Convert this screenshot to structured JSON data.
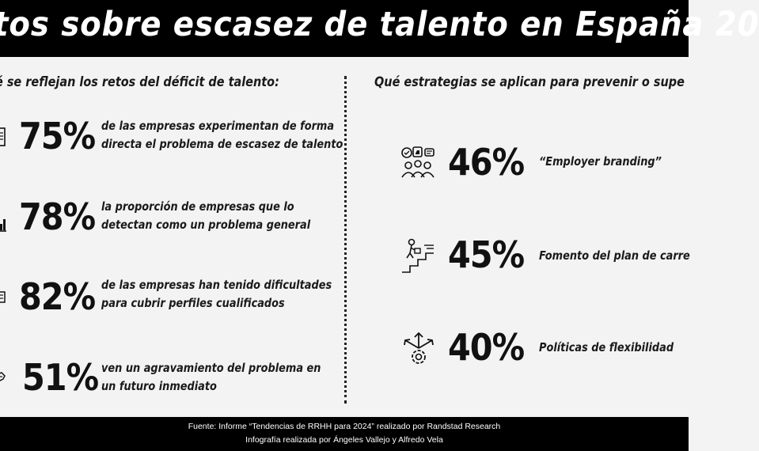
{
  "header": {
    "title": "tos sobre escasez de talento en España 20"
  },
  "left": {
    "heading": "é se reflejan los retos del déficit de talento:",
    "stats": [
      {
        "value": "75%",
        "line1": "de las empresas experimentan de forma",
        "line2": "directa el problema de escasez de talento",
        "icon": "document-icon"
      },
      {
        "value": "78%",
        "line1": "la proporción de empresas que lo",
        "line2": "detectan como un problema general",
        "icon": "chart-icon"
      },
      {
        "value": "82%",
        "line1": "de las empresas han tenido dificultades",
        "line2": "para cubrir perfiles cualificados",
        "icon": "list-icon"
      },
      {
        "value": "51%",
        "line1": "ven un agravamiento del problema en",
        "line2": "un futuro inmediato",
        "icon": "handshake-icon"
      }
    ]
  },
  "right": {
    "heading": "Qué estrategias se aplican para prevenir o supe",
    "stats": [
      {
        "value": "46%",
        "label": "“Employer branding”",
        "icon": "employer-branding-icon"
      },
      {
        "value": "45%",
        "label": "Fomento del plan de carre",
        "icon": "career-stairs-icon"
      },
      {
        "value": "40%",
        "label": "Políticas de flexibilidad",
        "icon": "flexibility-gear-icon"
      }
    ]
  },
  "footer": {
    "line1": "Fuente:  Informe “Tendencias de RRHH para 2024” realizado por Randstad Research",
    "line2": "Infografía realizada por Ángeles Vallejo y Alfredo Vela"
  }
}
